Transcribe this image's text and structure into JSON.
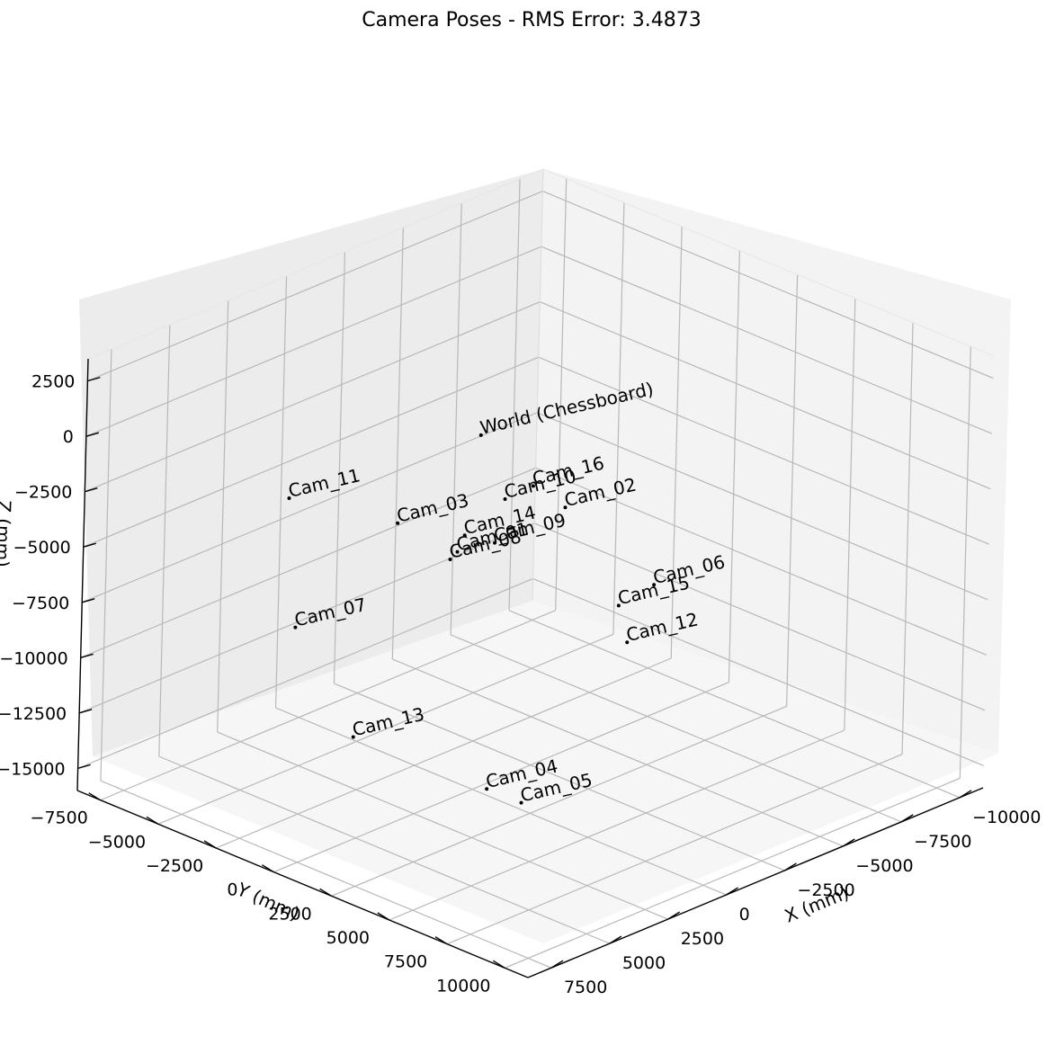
{
  "chart_data": {
    "type": "scatter",
    "title": "Camera Poses - RMS Error: 3.4873",
    "xlabel": "X (mm)",
    "ylabel": "Y (mm)",
    "zlabel": "Z (mm)",
    "xlim": [
      -11000,
      8500
    ],
    "ylim": [
      -8500,
      11000
    ],
    "zlim": [
      -16000,
      3500
    ],
    "x_ticks": [
      "−10000",
      "−7500",
      "−5000",
      "−2500",
      "0",
      "2500",
      "5000",
      "7500"
    ],
    "y_ticks": [
      "−7500",
      "−5000",
      "−2500",
      "0",
      "2500",
      "5000",
      "7500",
      "10000"
    ],
    "z_ticks": [
      "2500",
      "0",
      "−2500",
      "−5000",
      "−7500",
      "−10000",
      "−12500",
      "−15000"
    ],
    "grid": true,
    "points": [
      {
        "label": "World (Chessboard)",
        "x": 0,
        "y": 0,
        "z": 0
      },
      {
        "label": "Cam_16",
        "x": -800,
        "y": 1500,
        "z": -2000
      },
      {
        "label": "Cam_10",
        "x": -100,
        "y": 1000,
        "z": -2500
      },
      {
        "label": "Cam_02",
        "x": -1300,
        "y": 2400,
        "z": -2800
      },
      {
        "label": "Cam_11",
        "x": 4700,
        "y": -3500,
        "z": -2300
      },
      {
        "label": "Cam_03",
        "x": 2400,
        "y": -1100,
        "z": -3400
      },
      {
        "label": "Cam_14",
        "x": 900,
        "y": 300,
        "z": -4000
      },
      {
        "label": "Cam_01",
        "x": 1100,
        "y": 200,
        "z": -4700
      },
      {
        "label": "Cam_09",
        "x": 300,
        "y": 1000,
        "z": -4300
      },
      {
        "label": "Cam_08",
        "x": 1300,
        "y": 100,
        "z": -5000
      },
      {
        "label": "Cam_06",
        "x": -2900,
        "y": 4700,
        "z": -6000
      },
      {
        "label": "Cam_15",
        "x": -2000,
        "y": 4100,
        "z": -6800
      },
      {
        "label": "Cam_12",
        "x": -1900,
        "y": 4600,
        "z": -8200
      },
      {
        "label": "Cam_07",
        "x": 5000,
        "y": -2800,
        "z": -7700
      },
      {
        "label": "Cam_13",
        "x": 4800,
        "y": -400,
        "z": -11700
      },
      {
        "label": "Cam_04",
        "x": 2200,
        "y": 2800,
        "z": -13800
      },
      {
        "label": "Cam_05",
        "x": 1600,
        "y": 3700,
        "z": -14300
      }
    ]
  }
}
